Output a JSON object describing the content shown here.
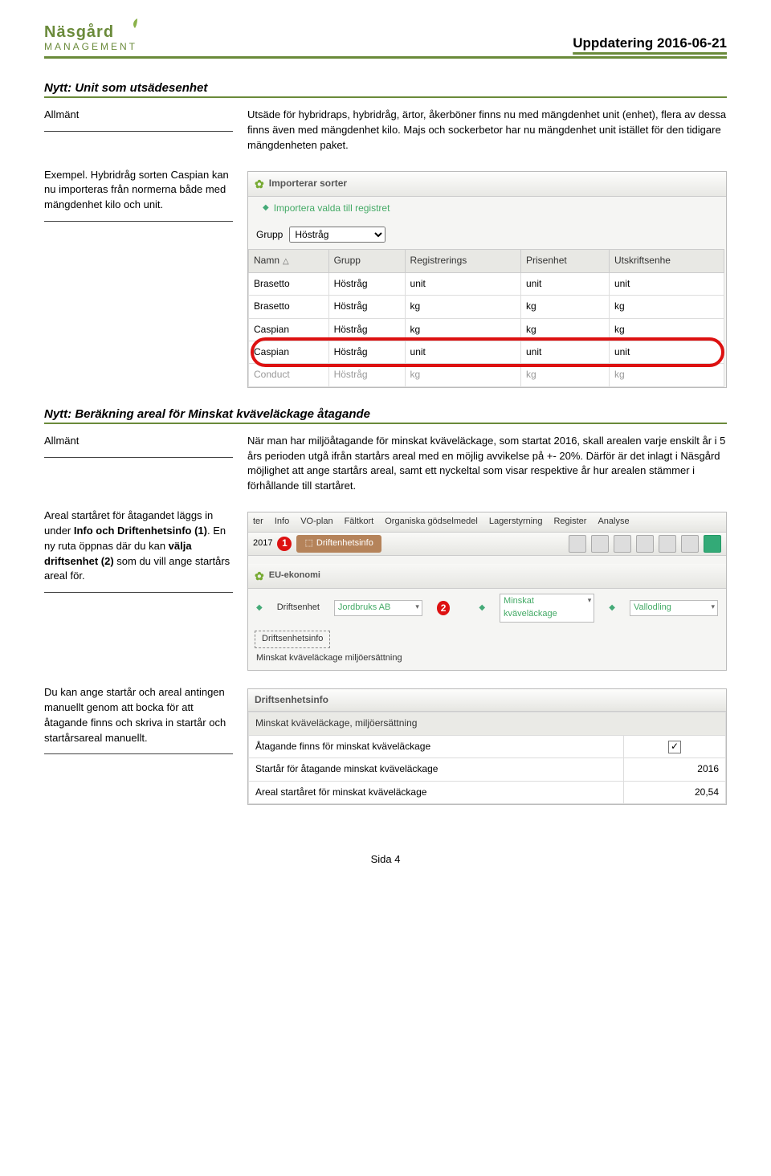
{
  "header": {
    "title": "Uppdatering 2016-06-21",
    "logo_top": "Näsgård",
    "logo_bottom": "MANAGEMENT"
  },
  "s1": {
    "heading": "Nytt: Unit som utsädesenhet",
    "left1": "Allmänt",
    "right1": "Utsäde för hybridraps, hybridråg, ärtor, åkerböner finns nu med mängdenhet unit (enhet), flera av dessa finns även med mängdenhet kilo. Majs och sockerbetor har nu mängdenhet unit istället för den tidigare mängdenheten paket.",
    "left2": "Exempel. Hybridråg sorten Caspian kan nu importeras från normerna både med mängdenhet kilo och unit.",
    "ss": {
      "panel_title": "Importerar sorter",
      "sub": "Importera valda till registret",
      "grupp_label": "Grupp",
      "grupp_value": "Höstråg",
      "cols": [
        "Namn",
        "Grupp",
        "Registrerings",
        "Prisenhet",
        "Utskriftsenhe"
      ],
      "rows": [
        [
          "Brasetto",
          "Höstråg",
          "unit",
          "unit",
          "unit"
        ],
        [
          "Brasetto",
          "Höstråg",
          "kg",
          "kg",
          "kg"
        ],
        [
          "Caspian",
          "Höstråg",
          "kg",
          "kg",
          "kg"
        ],
        [
          "Caspian",
          "Höstråg",
          "unit",
          "unit",
          "unit"
        ],
        [
          "Conduct",
          "Höstråg",
          "kg",
          "kg",
          "kg"
        ]
      ]
    }
  },
  "s2": {
    "heading": "Nytt: Beräkning areal för Minskat kväveläckage åtagande",
    "left1": "Allmänt",
    "right1": "När man har miljöåtagande för minskat kväveläckage, som startat 2016, skall arealen varje enskilt år i 5 års perioden utgå ifrån startårs areal med en möjlig avvikelse på +- 20%. Därför är det inlagt i Näsgård möjlighet att ange startårs areal, samt ett nyckeltal som visar respektive år hur arealen stämmer i förhållande till startåret.",
    "left2_html": "Areal startåret för åtagandet läggs in under <b>Info och Driftenhetsinfo (1)</b>. En ny ruta öppnas där du kan <b>välja driftsenhet (2)</b> som du vill ange startårs areal för.",
    "ss": {
      "menu": [
        "ter",
        "Info",
        "VO-plan",
        "Fältkort",
        "Organiska gödselmedel",
        "Lagerstyrning",
        "Register",
        "Analyse"
      ],
      "year": "2017",
      "pill": "Driftenhetsinfo",
      "panel_title": "EU-ekonomi",
      "fields": {
        "driftsenhet_label": "Driftsenhet",
        "driftsenhet_value": "Jordbruks AB",
        "minskat_label": "Minskat kväveläckage",
        "vall_label": "Vallodling"
      },
      "tab": "Driftsenhetsinfo",
      "bottom": "Minskat kväveläckage  miljöersättning"
    },
    "left3": "Du kan ange startår och areal antingen manuellt genom att bocka för att åtagande finns och skriva in startår och startårsareal manuellt.",
    "ss3": {
      "panel_title": "Driftsenhetsinfo",
      "rows": [
        [
          "Minskat kväveläckage, miljöersättning",
          ""
        ],
        [
          "Åtagande finns för minskat kväveläckage",
          "check"
        ],
        [
          "Startår för åtagande minskat kväveläckage",
          "2016"
        ],
        [
          "Areal startåret för minskat kväveläckage",
          "20,54"
        ]
      ]
    }
  },
  "footer": "Sida 4"
}
